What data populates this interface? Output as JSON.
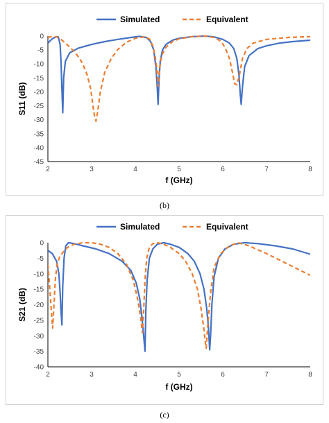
{
  "figure": {
    "caption_b": "(b)",
    "caption_c": "(c)"
  },
  "colors": {
    "simulated": "#4472c4",
    "equivalent": "#ed7d31",
    "axis": "#000000",
    "tick_text": "#404040"
  },
  "chart_data": [
    {
      "id": "s11",
      "type": "line",
      "xlabel": "f (GHz)",
      "ylabel": "S11 (dB)",
      "xlim": [
        2,
        8
      ],
      "ylim": [
        -45,
        0
      ],
      "xticks": [
        2,
        3,
        4,
        5,
        6,
        7,
        8
      ],
      "yticks": [
        0,
        -5,
        -10,
        -15,
        -20,
        -25,
        -30,
        -35,
        -40,
        -45
      ],
      "grid": false,
      "legend": "top-center",
      "series": [
        {
          "name": "Simulated",
          "style": "solid",
          "x": [
            2.0,
            2.1,
            2.18,
            2.24,
            2.28,
            2.3,
            2.32,
            2.34,
            2.36,
            2.4,
            2.5,
            2.7,
            3.0,
            3.3,
            3.6,
            3.9,
            4.1,
            4.25,
            4.35,
            4.42,
            4.47,
            4.5,
            4.52,
            4.54,
            4.57,
            4.62,
            4.7,
            4.85,
            5.0,
            5.3,
            5.6,
            5.8,
            6.0,
            6.15,
            6.25,
            6.32,
            6.37,
            6.4,
            6.42,
            6.45,
            6.5,
            6.6,
            6.8,
            7.0,
            7.3,
            7.6,
            8.0
          ],
          "y": [
            -2.5,
            -1.0,
            -0.3,
            -0.3,
            -3,
            -9,
            -19,
            -27.5,
            -15,
            -9,
            -6,
            -4.3,
            -3,
            -2,
            -1.2,
            -0.5,
            -0.1,
            -0.5,
            -2,
            -5,
            -11,
            -18,
            -24.5,
            -16,
            -9,
            -5,
            -3,
            -1.5,
            -0.8,
            -0.2,
            0,
            -0.3,
            -1.2,
            -2.5,
            -4.5,
            -8,
            -14,
            -21,
            -24.5,
            -18,
            -11,
            -7,
            -4.5,
            -3.5,
            -2.5,
            -2,
            -1.5
          ]
        },
        {
          "name": "Equivalent",
          "style": "dashed",
          "x": [
            2.0,
            2.1,
            2.2,
            2.3,
            2.4,
            2.5,
            2.6,
            2.7,
            2.8,
            2.9,
            2.98,
            3.03,
            3.07,
            3.1,
            3.14,
            3.2,
            3.3,
            3.45,
            3.6,
            3.8,
            4.0,
            4.2,
            4.32,
            4.4,
            4.45,
            4.5,
            4.52,
            4.55,
            4.6,
            4.7,
            4.85,
            5.0,
            5.3,
            5.6,
            5.8,
            5.95,
            6.05,
            6.15,
            6.22,
            6.27,
            6.32,
            6.38,
            6.45,
            6.55,
            6.7,
            7.0,
            7.5,
            8.0
          ],
          "y": [
            -0.5,
            -0.1,
            -0.3,
            -1.2,
            -2.5,
            -4,
            -5.5,
            -7.5,
            -10,
            -14,
            -19,
            -25,
            -29,
            -30.5,
            -27,
            -20,
            -13,
            -8,
            -4.8,
            -2.2,
            -0.8,
            -0.3,
            -1,
            -3.5,
            -7,
            -13,
            -18,
            -12,
            -7,
            -4,
            -2,
            -1,
            -0.2,
            0,
            -0.5,
            -1.8,
            -4,
            -8,
            -13,
            -17,
            -17.5,
            -14,
            -8,
            -4.5,
            -2.5,
            -1.2,
            -0.5,
            -0.2
          ]
        }
      ]
    },
    {
      "id": "s21",
      "type": "line",
      "xlabel": "f (GHz)",
      "ylabel": "S21 (dB)",
      "xlim": [
        2,
        8
      ],
      "ylim": [
        -40,
        0
      ],
      "xticks": [
        2,
        3,
        4,
        5,
        6,
        7,
        8
      ],
      "yticks": [
        0,
        -5,
        -10,
        -15,
        -20,
        -25,
        -30,
        -35,
        -40
      ],
      "grid": false,
      "legend": "top-center",
      "series": [
        {
          "name": "Simulated",
          "style": "solid",
          "x": [
            2.0,
            2.1,
            2.2,
            2.25,
            2.28,
            2.3,
            2.32,
            2.34,
            2.37,
            2.41,
            2.47,
            2.6,
            2.8,
            3.1,
            3.4,
            3.7,
            3.9,
            4.02,
            4.1,
            4.15,
            4.19,
            4.22,
            4.24,
            4.27,
            4.32,
            4.4,
            4.5,
            4.65,
            4.8,
            5.0,
            5.2,
            5.35,
            5.48,
            5.57,
            5.63,
            5.67,
            5.7,
            5.72,
            5.75,
            5.8,
            5.9,
            6.05,
            6.25,
            6.5,
            6.8,
            7.2,
            7.6,
            8.0
          ],
          "y": [
            -2.5,
            -3.5,
            -6,
            -10,
            -16,
            -22,
            -26.5,
            -14,
            -5,
            -1,
            0,
            -0.3,
            -1,
            -2,
            -3.5,
            -6,
            -9,
            -13,
            -18,
            -24,
            -30,
            -35,
            -22,
            -12,
            -5,
            -2,
            -0.5,
            0,
            -0.5,
            -1.5,
            -3.5,
            -6,
            -10,
            -15,
            -21,
            -27,
            -34.5,
            -30,
            -20,
            -11,
            -5,
            -2,
            -0.5,
            0,
            -0.3,
            -1,
            -2,
            -3.7
          ]
        },
        {
          "name": "Equivalent",
          "style": "dashed",
          "x": [
            2.0,
            2.04,
            2.08,
            2.11,
            2.14,
            2.17,
            2.21,
            2.27,
            2.35,
            2.45,
            2.6,
            2.8,
            3.0,
            3.2,
            3.4,
            3.6,
            3.8,
            3.95,
            4.05,
            4.12,
            4.16,
            4.19,
            4.22,
            4.26,
            4.32,
            4.4,
            4.5,
            4.65,
            4.8,
            5.0,
            5.15,
            5.3,
            5.42,
            5.5,
            5.56,
            5.6,
            5.62,
            5.66,
            5.72,
            5.8,
            5.95,
            6.15,
            6.35,
            6.6,
            7.0,
            7.5,
            8.0
          ],
          "y": [
            -7,
            -14,
            -22,
            -27.5,
            -20,
            -12,
            -7,
            -4.5,
            -3,
            -1.5,
            -0.5,
            0,
            0,
            -0.5,
            -1.5,
            -3.5,
            -7,
            -12,
            -18,
            -24,
            -29,
            -22,
            -12,
            -5,
            -1.5,
            -0.3,
            0,
            -0.5,
            -1.5,
            -3.5,
            -6,
            -10,
            -15,
            -21,
            -27,
            -32,
            -34,
            -26,
            -16,
            -8,
            -3.5,
            -1,
            0,
            -1,
            -3.5,
            -7,
            -10.5
          ]
        }
      ]
    }
  ]
}
